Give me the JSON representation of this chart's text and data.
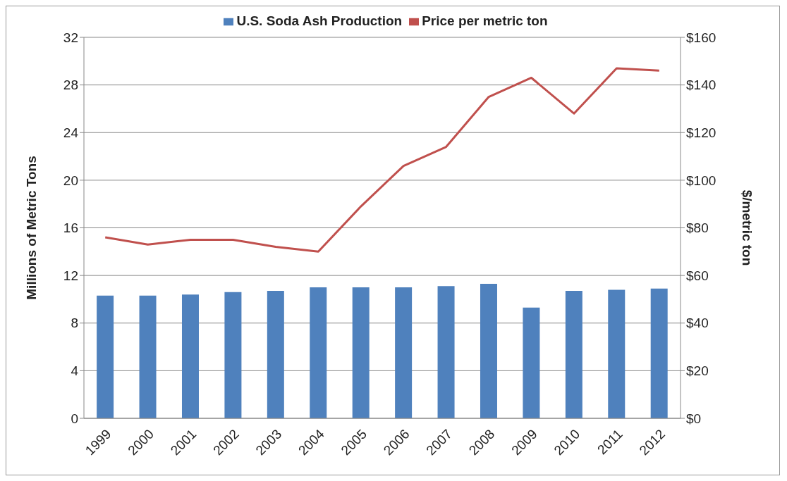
{
  "chart_data": {
    "type": "bar",
    "categories": [
      "1999",
      "2000",
      "2001",
      "2002",
      "2003",
      "2004",
      "2005",
      "2006",
      "2007",
      "2008",
      "2009",
      "2010",
      "2011",
      "2012"
    ],
    "series": [
      {
        "name": "U.S. Soda Ash Production",
        "color": "#4f81bd",
        "values": [
          10.3,
          10.3,
          10.4,
          10.6,
          10.7,
          11.0,
          11.0,
          11.0,
          11.1,
          11.3,
          9.3,
          10.7,
          10.8,
          10.9
        ]
      },
      {
        "name": "Price per metric ton",
        "type": "line",
        "axis": "y2",
        "color": "#c0504d",
        "values": [
          76,
          73,
          75,
          75,
          72,
          70,
          89,
          106,
          114,
          135,
          143,
          128,
          147,
          146
        ]
      }
    ],
    "ylabel": "Millions of Metric Tons",
    "y2label": "$/metric ton",
    "ylim": [
      0,
      32
    ],
    "yticks": [
      0,
      4,
      8,
      12,
      16,
      20,
      24,
      28,
      32
    ],
    "y2lim": [
      0,
      160
    ],
    "y2ticks": [
      {
        "value": 0,
        "label": "$0"
      },
      {
        "value": 20,
        "label": "$20"
      },
      {
        "value": 40,
        "label": "$40"
      },
      {
        "value": 60,
        "label": "$60"
      },
      {
        "value": 80,
        "label": "$80"
      },
      {
        "value": 100,
        "label": "$100"
      },
      {
        "value": 120,
        "label": "$120"
      },
      {
        "value": 140,
        "label": "$140"
      },
      {
        "value": 160,
        "label": "$160"
      }
    ],
    "grid": "y",
    "legend": "top",
    "marker": "none",
    "line_style": "solid"
  }
}
